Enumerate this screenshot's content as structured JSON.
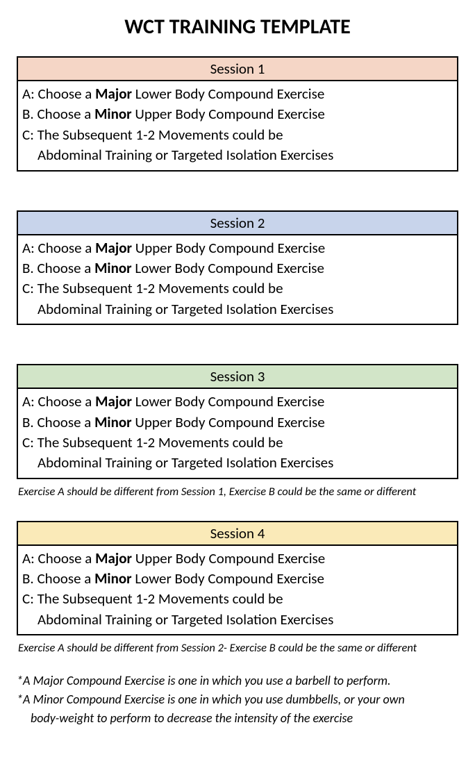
{
  "title": "WCT TRAINING TEMPLATE",
  "sessions": [
    {
      "header": "Session 1",
      "header_bg": "#f5d6c6",
      "rowA_pre": "A: Choose a ",
      "rowA_bold": "Major",
      "rowA_post": " Lower Body Compound Exercise",
      "rowB_pre": "B. Choose a ",
      "rowB_bold": "Minor",
      "rowB_post": " Upper Body Compound Exercise",
      "rowC1": "C: The Subsequent 1-2 Movements could be",
      "rowC2": "Abdominal Training or Targeted Isolation Exercises",
      "footnote": ""
    },
    {
      "header": "Session 2",
      "header_bg": "#c8d4eb",
      "rowA_pre": "A: Choose a ",
      "rowA_bold": "Major",
      "rowA_post": " Upper Body Compound Exercise",
      "rowB_pre": "B. Choose a ",
      "rowB_bold": "Minor",
      "rowB_post": " Lower Body Compound Exercise",
      "rowC1": "C: The Subsequent 1-2 Movements could be",
      "rowC2": "Abdominal Training or Targeted Isolation Exercises",
      "footnote": ""
    },
    {
      "header": "Session 3",
      "header_bg": "#d2e5c8",
      "rowA_pre": "A: Choose a ",
      "rowA_bold": "Major",
      "rowA_post": " Lower Body Compound Exercise",
      "rowB_pre": "B. Choose a ",
      "rowB_bold": "Minor",
      "rowB_post": " Upper Body Compound Exercise",
      "rowC1": "C: The Subsequent 1-2 Movements could be",
      "rowC2": "Abdominal Training or Targeted Isolation Exercises",
      "footnote": "Exercise A should be different from Session 1, Exercise B could be the same or different"
    },
    {
      "header": "Session 4",
      "header_bg": "#faeab8",
      "rowA_pre": "A: Choose a ",
      "rowA_bold": "Major",
      "rowA_post": " Upper Body Compound Exercise",
      "rowB_pre": "B. Choose a ",
      "rowB_bold": "Minor",
      "rowB_post": " Lower Body Compound Exercise",
      "rowC1": "C: The Subsequent 1-2 Movements could be",
      "rowC2": "Abdominal Training or Targeted Isolation Exercises",
      "footnote": "Exercise A should be different from Session 2- Exercise B could be the same or different"
    }
  ],
  "notes": {
    "line1": "*A Major Compound Exercise is one in which you use a barbell to perform.",
    "line2": "*A Minor Compound Exercise is one in which you use dumbbells, or your own",
    "line3": "body-weight to perform to decrease the intensity of the exercise"
  }
}
